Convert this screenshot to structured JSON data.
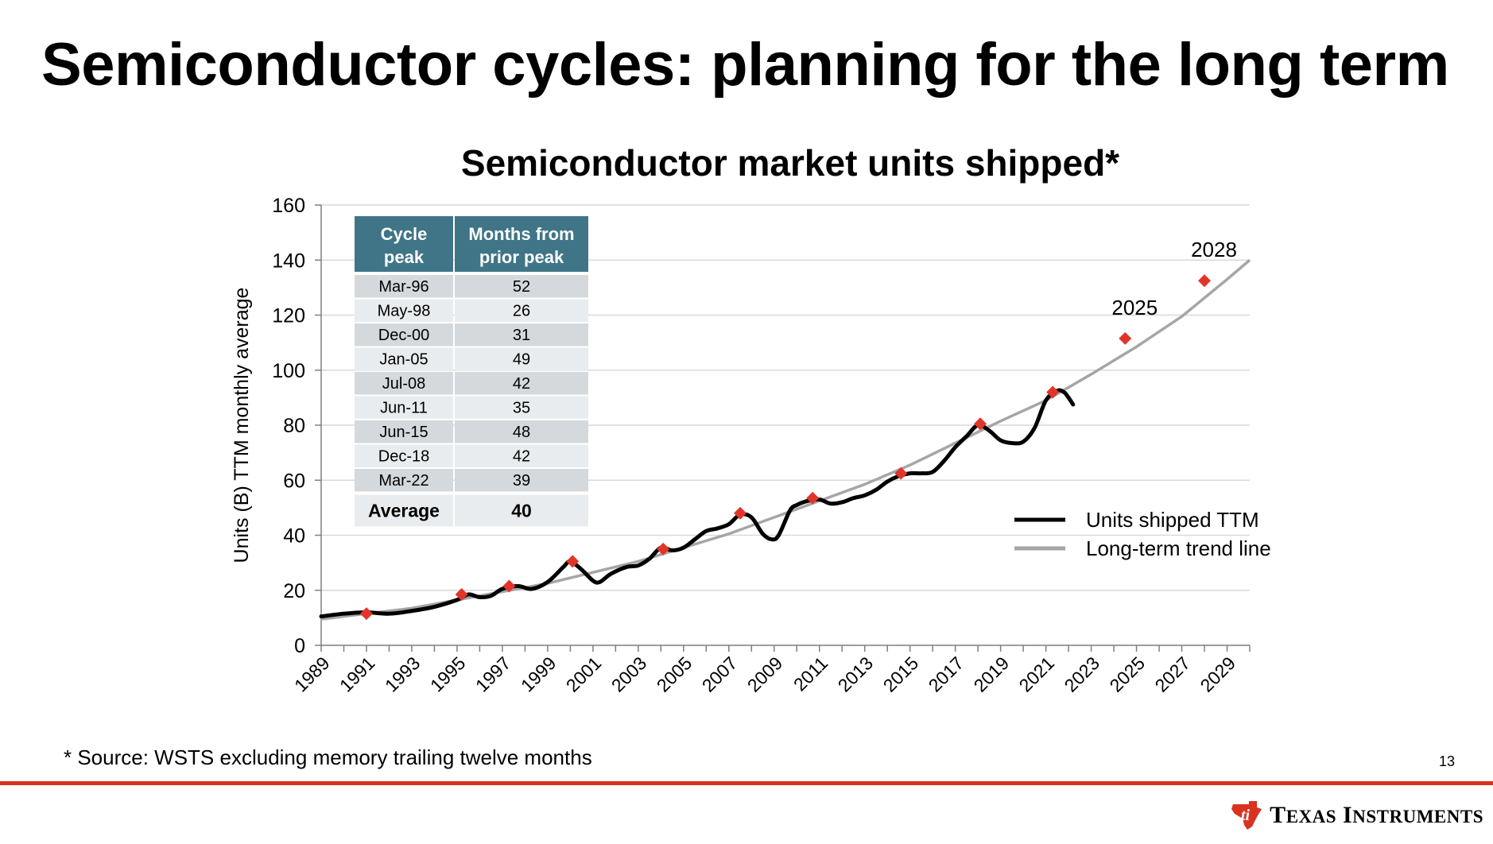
{
  "slide": {
    "title": "Semiconductor cycles: planning for the long term",
    "footnote": "* Source: WSTS excluding memory trailing twelve months",
    "page_number": "13",
    "logo_text_first": "T",
    "logo_text_first_rest": "EXAS",
    "logo_text_second": "I",
    "logo_text_second_rest": "NSTRUMENTS",
    "logo_icon": "texas-instruments-logo-icon"
  },
  "colors": {
    "actual_line": "#000000",
    "trend_line": "#a6a6a6",
    "peak_marker": "#e2352a",
    "table_header": "#3f7586",
    "row_dark": "#d4d9dd",
    "row_light": "#e9ecee",
    "grid": "#d9d9d9",
    "accent_rule": "#d9321f"
  },
  "chart_data": {
    "type": "line",
    "title": "Semiconductor market units shipped*",
    "ylabel": "Units (B) TTM monthly average",
    "xlabel": "",
    "xlim": [
      1989,
      2030
    ],
    "ylim": [
      0,
      160
    ],
    "yticks": [
      0,
      20,
      40,
      60,
      80,
      100,
      120,
      140,
      160
    ],
    "xticks": [
      "1989",
      "1991",
      "1993",
      "1995",
      "1997",
      "1999",
      "2001",
      "2003",
      "2005",
      "2007",
      "2009",
      "2011",
      "2013",
      "2015",
      "2017",
      "2019",
      "2021",
      "2023",
      "2025",
      "2027",
      "2029"
    ],
    "grid": "horizontal",
    "legend_position": "right",
    "series": [
      {
        "name": "Units shipped TTM",
        "type": "line",
        "x": [
          1989,
          1990,
          1991,
          1992,
          1993,
          1994,
          1995,
          1995.5,
          1996,
          1996.5,
          1997,
          1997.7,
          1998.3,
          1999,
          1999.7,
          2000,
          2000.5,
          2001,
          2001.3,
          2001.8,
          2002.5,
          2003,
          2003.5,
          2004,
          2004.5,
          2005,
          2005.5,
          2006,
          2006.5,
          2007,
          2007.5,
          2008,
          2008.5,
          2008.9,
          2009.2,
          2009.7,
          2010,
          2010.5,
          2011,
          2011.5,
          2012,
          2012.5,
          2013,
          2013.5,
          2014,
          2014.5,
          2015,
          2015.5,
          2016,
          2016.5,
          2017,
          2017.5,
          2018,
          2018.5,
          2019,
          2019.5,
          2020,
          2020.5,
          2021,
          2021.5,
          2021.8,
          2022,
          2022.2
        ],
        "values": [
          10.5,
          11.5,
          12.0,
          11.5,
          12.5,
          14.0,
          16.5,
          18.5,
          17.5,
          18.0,
          20.5,
          21.5,
          20.5,
          23.0,
          28.5,
          30.5,
          27.5,
          23.5,
          23.0,
          26.0,
          28.5,
          29.0,
          31.5,
          35.5,
          34.5,
          35.5,
          38.5,
          41.5,
          42.5,
          44.0,
          47.5,
          46.5,
          40.5,
          38.5,
          40.0,
          49.0,
          51.0,
          52.5,
          53.0,
          51.5,
          52.0,
          53.5,
          54.5,
          56.5,
          59.5,
          61.5,
          62.5,
          62.5,
          63.0,
          67.0,
          72.0,
          76.0,
          80.0,
          78.0,
          74.5,
          73.5,
          74.0,
          79.0,
          89.0,
          92.5,
          92.0,
          90.0,
          87.5
        ]
      },
      {
        "name": "Long-term trend line",
        "type": "line",
        "x": [
          1989,
          1991,
          1993,
          1995,
          1997,
          1999,
          2001,
          2003,
          2005,
          2007,
          2009,
          2011,
          2013,
          2015,
          2017,
          2019,
          2021,
          2023,
          2025,
          2027,
          2029,
          2030
        ],
        "values": [
          9.5,
          11.5,
          13.5,
          16.5,
          19.5,
          22.5,
          26.5,
          30.5,
          35.5,
          40.5,
          46.5,
          52.5,
          58.5,
          65.5,
          73.5,
          81.5,
          89.0,
          98.5,
          108.5,
          119.5,
          133.0,
          140.0
        ]
      },
      {
        "name": "Cycle peaks",
        "type": "scatter",
        "x": [
          1991,
          1995.2,
          1997.3,
          2000.1,
          2004.1,
          2007.5,
          2010.7,
          2014.6,
          2018.1,
          2021.3,
          2024.5,
          2028
        ],
        "values": [
          11.5,
          18.5,
          21.5,
          30.5,
          35.0,
          48.0,
          53.5,
          62.5,
          80.5,
          92.0,
          111.5,
          132.5
        ]
      }
    ],
    "annotations": [
      {
        "text": "2025",
        "x": 2024.5,
        "y": 111.5
      },
      {
        "text": "2028",
        "x": 2028,
        "y": 132.5
      }
    ],
    "table": {
      "headers": [
        "Cycle peak",
        "Months from prior peak"
      ],
      "rows": [
        [
          "Mar-96",
          "52"
        ],
        [
          "May-98",
          "26"
        ],
        [
          "Dec-00",
          "31"
        ],
        [
          "Jan-05",
          "49"
        ],
        [
          "Jul-08",
          "42"
        ],
        [
          "Jun-11",
          "35"
        ],
        [
          "Jun-15",
          "48"
        ],
        [
          "Dec-18",
          "42"
        ],
        [
          "Mar-22",
          "39"
        ]
      ],
      "footer": [
        "Average",
        "40"
      ]
    }
  }
}
